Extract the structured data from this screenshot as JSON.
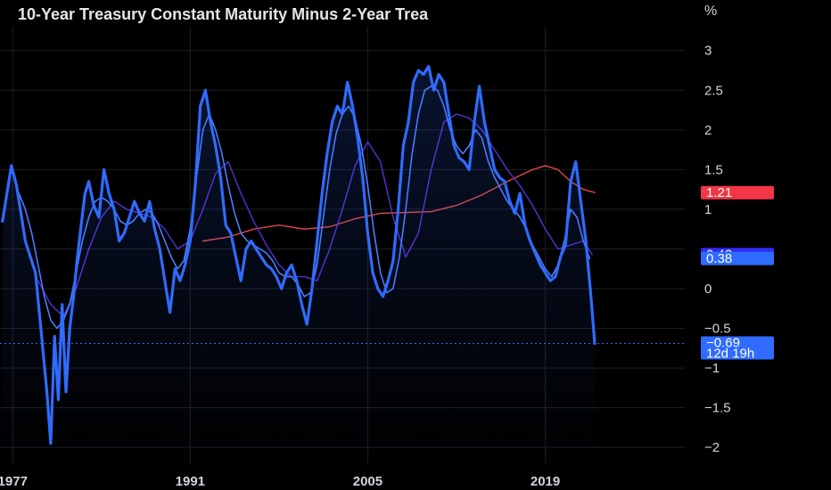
{
  "chart_data": {
    "type": "line",
    "title": "10-Year Treasury Constant Maturity Minus 2-Year Trea",
    "unit_label": "%",
    "x_range": [
      1976,
      2030
    ],
    "ylim": [
      -2.2,
      3.3
    ],
    "y_ticks": [
      {
        "v": 3,
        "label": "3"
      },
      {
        "v": 2.5,
        "label": "2.5"
      },
      {
        "v": 2,
        "label": "2"
      },
      {
        "v": 1.5,
        "label": "1.5"
      },
      {
        "v": 1,
        "label": "1"
      },
      {
        "v": 0.5,
        "label": ""
      },
      {
        "v": 0,
        "label": "0"
      },
      {
        "v": -0.5,
        "label": "−0.5"
      },
      {
        "v": -1,
        "label": "−1"
      },
      {
        "v": -1.5,
        "label": "−1.5"
      },
      {
        "v": -2,
        "label": "−2"
      }
    ],
    "x_ticks": [
      {
        "v": 1977,
        "label": "1977"
      },
      {
        "v": 1991,
        "label": "1991"
      },
      {
        "v": 2005,
        "label": "2005"
      },
      {
        "v": 2019,
        "label": "2019"
      }
    ],
    "grid": true,
    "series": [
      {
        "key": "spread",
        "color": "#2f6bff",
        "width": 3.2,
        "fill": true,
        "x": [
          1976.2,
          1976.6,
          1976.9,
          1977.3,
          1977.7,
          1978.0,
          1978.4,
          1978.8,
          1979.1,
          1979.4,
          1979.7,
          1980.0,
          1980.3,
          1980.6,
          1980.9,
          1981.2,
          1981.5,
          1981.8,
          1982.1,
          1982.4,
          1982.7,
          1983.0,
          1983.4,
          1983.8,
          1984.2,
          1984.6,
          1985.0,
          1985.4,
          1985.8,
          1986.2,
          1986.6,
          1987.0,
          1987.4,
          1987.8,
          1988.2,
          1988.6,
          1989.0,
          1989.4,
          1989.8,
          1990.2,
          1990.6,
          1991.0,
          1991.4,
          1991.8,
          1992.2,
          1992.6,
          1993.0,
          1993.4,
          1993.8,
          1994.2,
          1994.6,
          1995.0,
          1995.4,
          1995.8,
          1996.2,
          1996.6,
          1997.0,
          1997.4,
          1997.8,
          1998.2,
          1998.6,
          1999.0,
          1999.4,
          1999.8,
          2000.2,
          2000.6,
          2001.0,
          2001.4,
          2001.8,
          2002.2,
          2002.6,
          2003.0,
          2003.4,
          2003.8,
          2004.2,
          2004.6,
          2005.0,
          2005.4,
          2005.8,
          2006.2,
          2006.6,
          2007.0,
          2007.4,
          2007.8,
          2008.2,
          2008.6,
          2009.0,
          2009.4,
          2009.8,
          2010.2,
          2010.6,
          2011.0,
          2011.4,
          2011.8,
          2012.2,
          2012.6,
          2013.0,
          2013.4,
          2013.8,
          2014.2,
          2014.6,
          2015.0,
          2015.4,
          2015.8,
          2016.2,
          2016.6,
          2017.0,
          2017.4,
          2017.8,
          2018.2,
          2018.6,
          2019.0,
          2019.4,
          2019.8,
          2020.2,
          2020.6,
          2021.0,
          2021.4,
          2021.8,
          2022.2,
          2022.6,
          2022.9
        ],
        "y": [
          0.85,
          1.25,
          1.55,
          1.3,
          0.9,
          0.6,
          0.4,
          0.2,
          -0.3,
          -0.8,
          -1.3,
          -1.95,
          -0.6,
          -1.4,
          -0.2,
          -1.3,
          -0.5,
          -0.1,
          0.4,
          0.8,
          1.2,
          1.35,
          1.05,
          0.9,
          1.5,
          1.2,
          1.0,
          0.6,
          0.7,
          0.9,
          1.1,
          0.95,
          0.85,
          1.1,
          0.75,
          0.5,
          0.1,
          -0.3,
          0.25,
          0.1,
          0.3,
          0.6,
          1.3,
          2.3,
          2.5,
          2.1,
          1.8,
          1.4,
          0.8,
          0.7,
          0.4,
          0.1,
          0.5,
          0.6,
          0.5,
          0.4,
          0.3,
          0.25,
          0.15,
          0.0,
          0.2,
          0.3,
          0.1,
          -0.2,
          -0.45,
          0.0,
          0.6,
          1.2,
          1.7,
          2.1,
          2.3,
          2.2,
          2.6,
          2.3,
          1.9,
          1.4,
          0.7,
          0.2,
          0.0,
          -0.1,
          0.1,
          0.35,
          1.0,
          1.8,
          2.1,
          2.6,
          2.75,
          2.7,
          2.8,
          2.5,
          2.7,
          2.6,
          2.2,
          1.8,
          1.65,
          1.6,
          1.5,
          2.1,
          2.55,
          2.1,
          1.8,
          1.5,
          1.4,
          1.35,
          1.1,
          0.95,
          1.2,
          0.8,
          0.6,
          0.45,
          0.3,
          0.2,
          0.1,
          0.15,
          0.4,
          0.55,
          1.35,
          1.6,
          1.1,
          0.6,
          -0.1,
          -0.69
        ]
      },
      {
        "key": "ma-fast",
        "color": "#4a7dff",
        "width": 1.6,
        "fill": false,
        "x": [
          1977.5,
          1978.0,
          1978.5,
          1979.0,
          1979.5,
          1980.0,
          1980.5,
          1981.0,
          1981.5,
          1982.0,
          1982.5,
          1983.0,
          1983.5,
          1984.0,
          1984.5,
          1985.0,
          1985.5,
          1986.0,
          1986.5,
          1987.0,
          1987.5,
          1988.0,
          1988.5,
          1989.0,
          1989.5,
          1990.0,
          1990.5,
          1991.0,
          1991.5,
          1992.0,
          1992.5,
          1993.0,
          1993.5,
          1994.0,
          1994.5,
          1995.0,
          1995.5,
          1996.0,
          1996.5,
          1997.0,
          1997.5,
          1998.0,
          1998.5,
          1999.0,
          1999.5,
          2000.0,
          2000.5,
          2001.0,
          2001.5,
          2002.0,
          2002.5,
          2003.0,
          2003.5,
          2004.0,
          2004.5,
          2005.0,
          2005.5,
          2006.0,
          2006.5,
          2007.0,
          2007.5,
          2008.0,
          2008.5,
          2009.0,
          2009.5,
          2010.0,
          2010.5,
          2011.0,
          2011.5,
          2012.0,
          2012.5,
          2013.0,
          2013.5,
          2014.0,
          2014.5,
          2015.0,
          2015.5,
          2016.0,
          2016.5,
          2017.0,
          2017.5,
          2018.0,
          2018.5,
          2019.0,
          2019.5,
          2020.0,
          2020.5,
          2021.0,
          2021.5,
          2022.0,
          2022.5
        ],
        "y": [
          1.2,
          1.0,
          0.7,
          0.3,
          -0.1,
          -0.4,
          -0.5,
          -0.4,
          -0.2,
          0.2,
          0.6,
          0.9,
          1.1,
          1.15,
          1.1,
          1.0,
          0.85,
          0.8,
          0.85,
          0.95,
          1.0,
          0.95,
          0.8,
          0.6,
          0.4,
          0.25,
          0.35,
          0.75,
          1.4,
          2.0,
          2.2,
          2.0,
          1.7,
          1.3,
          0.95,
          0.7,
          0.6,
          0.55,
          0.5,
          0.45,
          0.35,
          0.2,
          0.15,
          0.15,
          0.05,
          -0.1,
          -0.05,
          0.3,
          0.9,
          1.5,
          1.95,
          2.2,
          2.3,
          2.15,
          1.8,
          1.3,
          0.7,
          0.2,
          -0.05,
          0.0,
          0.4,
          1.0,
          1.7,
          2.2,
          2.5,
          2.55,
          2.5,
          2.3,
          2.0,
          1.8,
          1.7,
          1.8,
          2.0,
          1.9,
          1.6,
          1.4,
          1.25,
          1.1,
          1.0,
          0.9,
          0.75,
          0.55,
          0.4,
          0.25,
          0.15,
          0.3,
          0.6,
          1.0,
          0.9,
          0.6,
          0.38
        ]
      },
      {
        "key": "ma-mid",
        "color": "#5a2fd6",
        "width": 1.4,
        "fill": false,
        "x": [
          1979.0,
          1980.0,
          1981.0,
          1982.0,
          1983.0,
          1984.0,
          1985.0,
          1986.0,
          1987.0,
          1988.0,
          1989.0,
          1990.0,
          1991.0,
          1992.0,
          1993.0,
          1994.0,
          1995.0,
          1996.0,
          1997.0,
          1998.0,
          1999.0,
          2000.0,
          2001.0,
          2002.0,
          2003.0,
          2004.0,
          2005.0,
          2006.0,
          2007.0,
          2008.0,
          2009.0,
          2010.0,
          2011.0,
          2012.0,
          2013.0,
          2014.0,
          2015.0,
          2016.0,
          2017.0,
          2018.0,
          2019.0,
          2020.0,
          2021.0,
          2022.0,
          2022.7
        ],
        "y": [
          0.1,
          -0.2,
          -0.35,
          0.0,
          0.5,
          0.9,
          1.1,
          1.0,
          0.95,
          0.9,
          0.75,
          0.5,
          0.6,
          1.0,
          1.45,
          1.6,
          1.2,
          0.85,
          0.55,
          0.3,
          0.15,
          0.15,
          0.1,
          0.5,
          1.0,
          1.55,
          1.85,
          1.6,
          0.9,
          0.4,
          0.7,
          1.5,
          2.1,
          2.2,
          2.15,
          2.0,
          1.75,
          1.5,
          1.3,
          1.05,
          0.75,
          0.5,
          0.55,
          0.6,
          0.43
        ]
      },
      {
        "key": "ma-slow",
        "color": "#e0474c",
        "width": 1.4,
        "fill": false,
        "x": [
          1992.0,
          1994.0,
          1996.0,
          1998.0,
          2000.0,
          2002.0,
          2004.0,
          2006.0,
          2008.0,
          2010.0,
          2012.0,
          2014.0,
          2016.0,
          2018.0,
          2019.0,
          2020.0,
          2021.0,
          2022.0,
          2022.9
        ],
        "y": [
          0.6,
          0.65,
          0.75,
          0.8,
          0.75,
          0.78,
          0.88,
          0.95,
          0.96,
          0.97,
          1.05,
          1.18,
          1.35,
          1.5,
          1.55,
          1.5,
          1.35,
          1.25,
          1.21
        ]
      }
    ],
    "price_badges": [
      {
        "value": 1.21,
        "label": "1.21",
        "color": "#f23645"
      },
      {
        "value": 0.43,
        "label": "0.43",
        "color": "#2f2cf2"
      },
      {
        "value": 0.38,
        "label": "0.38",
        "color": "#2f6bff"
      },
      {
        "value": -0.69,
        "label": "−0.69",
        "label2": "12d 19h",
        "color": "#2f6bff"
      }
    ],
    "current_value": -0.69
  }
}
